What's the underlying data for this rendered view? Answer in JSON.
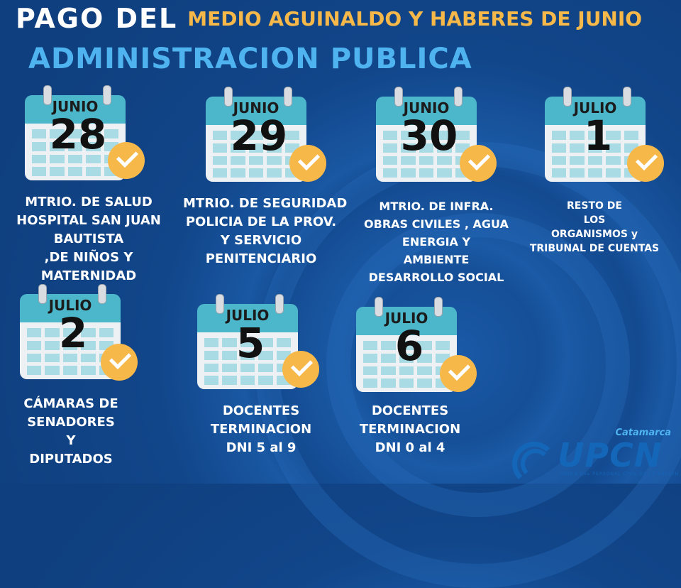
{
  "header": {
    "title_main": "PAGO DEL",
    "title_secondary": "MEDIO AGUINALDO Y HABERES DE JUNIO",
    "subtitle": "ADMINISTRACION PUBLICA"
  },
  "colors": {
    "accent_orange": "#f7b84a",
    "accent_blue": "#4fb3f0",
    "calendar_head": "#4cb7cb",
    "background": "#134a90"
  },
  "entries": [
    {
      "month": "JUNIO",
      "day": "28",
      "lines": [
        "MTRIO. DE SALUD",
        "HOSPITAL SAN JUAN",
        "BAUTISTA",
        ",DE NIÑOS Y",
        "MATERNIDAD"
      ]
    },
    {
      "month": "JUNIO",
      "day": "29",
      "lines": [
        "MTRIO. DE SEGURIDAD",
        "POLICIA DE LA PROV.",
        "Y SERVICIO",
        "PENITENCIARIO"
      ]
    },
    {
      "month": "JUNIO",
      "day": "30",
      "lines": [
        "MTRIO. DE INFRA.",
        "OBRAS CIVILES , AGUA",
        "ENERGIA Y",
        "AMBIENTE",
        "DESARROLLO SOCIAL"
      ]
    },
    {
      "month": "JULIO",
      "day": "1",
      "lines": [
        "RESTO DE",
        "LOS",
        "ORGANISMOS y",
        "TRIBUNAL DE CUENTAS"
      ]
    },
    {
      "month": "JULIO",
      "day": "2",
      "lines": [
        "CÁMARAS DE",
        "SENADORES",
        "Y",
        "DIPUTADOS"
      ]
    },
    {
      "month": "JULIO",
      "day": "5",
      "lines": [
        "DOCENTES",
        "TERMINACION",
        "DNI 5 al 9"
      ]
    },
    {
      "month": "JULIO",
      "day": "6",
      "lines": [
        "DOCENTES",
        "TERMINACION",
        "DNI 0 al 4"
      ]
    }
  ],
  "logo": {
    "region": "Catamarca",
    "name": "UPCN",
    "tagline": "UNION DEL PERSONAL CIVIL DE LA NACION"
  }
}
